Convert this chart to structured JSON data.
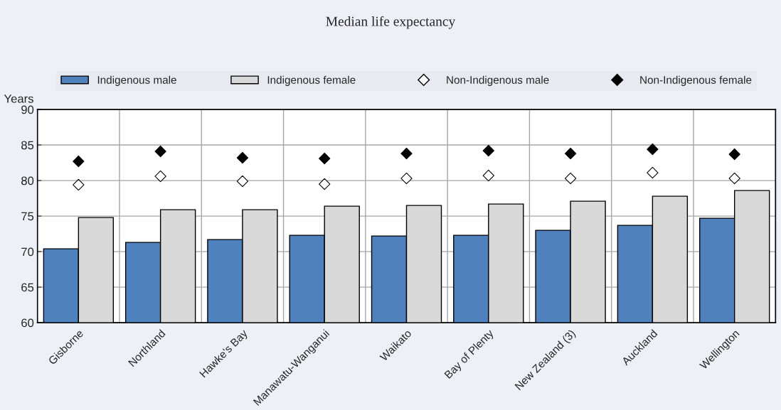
{
  "chart_data": {
    "type": "bar",
    "title": "Median life expectancy",
    "ylabel": "Years",
    "categories": [
      "Gisborne",
      "Northland",
      "Hawke's Bay",
      "Manawatu-Wanganui",
      "Waikato",
      "Bay of Plenty",
      "New Zealand (3)",
      "Auckland",
      "Wellington"
    ],
    "series": [
      {
        "name": "Indigenous male",
        "color": "#4f81bd",
        "values": [
          70.4,
          71.3,
          71.7,
          72.3,
          72.2,
          72.3,
          73.0,
          73.7,
          74.7
        ]
      },
      {
        "name": "Indigenous female",
        "color": "#d9d9d9",
        "values": [
          74.8,
          75.9,
          75.9,
          76.4,
          76.5,
          76.7,
          77.1,
          77.8,
          78.6
        ]
      },
      {
        "name": "Non-Indigenous male",
        "type": "scatter",
        "marker": "diamond",
        "color": "#ffffff",
        "values": [
          79.4,
          80.6,
          79.9,
          79.5,
          80.3,
          80.7,
          80.3,
          81.1,
          80.3
        ]
      },
      {
        "name": "Non-Indigenous female",
        "type": "scatter",
        "marker": "diamond",
        "color": "#000000",
        "values": [
          82.7,
          84.1,
          83.2,
          83.1,
          83.8,
          84.2,
          83.8,
          84.4,
          83.7
        ]
      }
    ],
    "ylim": [
      60,
      90
    ],
    "yticks": [
      60,
      65,
      70,
      75,
      80,
      85,
      90
    ],
    "grid": true,
    "legend": "top"
  }
}
